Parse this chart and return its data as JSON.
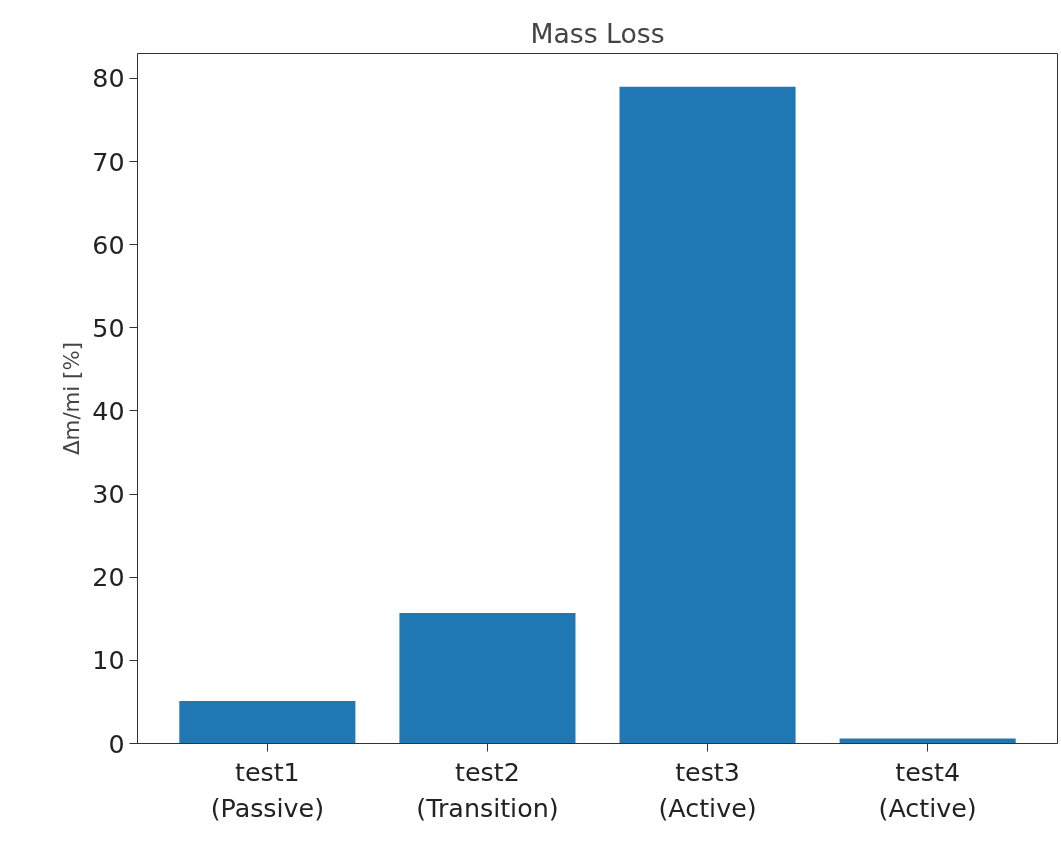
{
  "chart_data": {
    "type": "bar",
    "title": "Mass Loss",
    "ylabel": "Δm/mi [%]",
    "categories": [
      "test1\n(Passive)",
      "test2\n(Transition)",
      "test3\n(Active)",
      "test4\n(Active)"
    ],
    "values": [
      5.1,
      15.7,
      79,
      0.6
    ],
    "color": "#1f77b4",
    "ylim": [
      0,
      83
    ],
    "yticks": [
      0,
      10,
      20,
      30,
      40,
      50,
      60,
      70,
      80
    ],
    "grid": false
  }
}
